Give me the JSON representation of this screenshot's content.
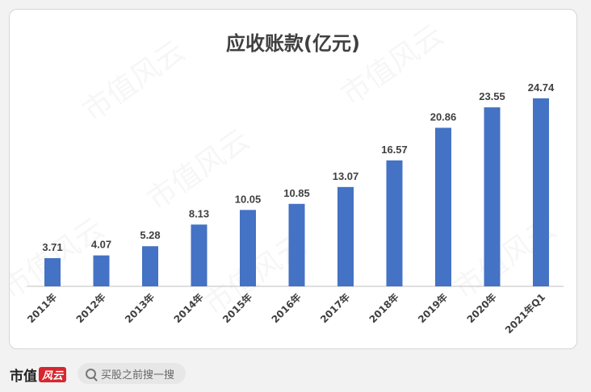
{
  "watermark_text": "市值风云",
  "chart_data": {
    "type": "bar",
    "title": "应收账款(亿元)",
    "categories": [
      "2011年",
      "2012年",
      "2013年",
      "2014年",
      "2015年",
      "2016年",
      "2017年",
      "2018年",
      "2019年",
      "2020年",
      "2021年Q1"
    ],
    "values": [
      3.71,
      4.07,
      5.28,
      8.13,
      10.05,
      10.85,
      13.07,
      16.57,
      20.86,
      23.55,
      24.74
    ],
    "value_labels": [
      "3.71",
      "4.07",
      "5.28",
      "8.13",
      "10.05",
      "10.85",
      "13.07",
      "16.57",
      "20.86",
      "23.55",
      "24.74"
    ],
    "ylim": [
      0,
      26
    ],
    "bar_color": "#4472c4",
    "grid": false,
    "legend": "none"
  },
  "footer": {
    "logo_text": "市值",
    "logo_mark": "风云",
    "search_placeholder": "买股之前搜一搜"
  }
}
